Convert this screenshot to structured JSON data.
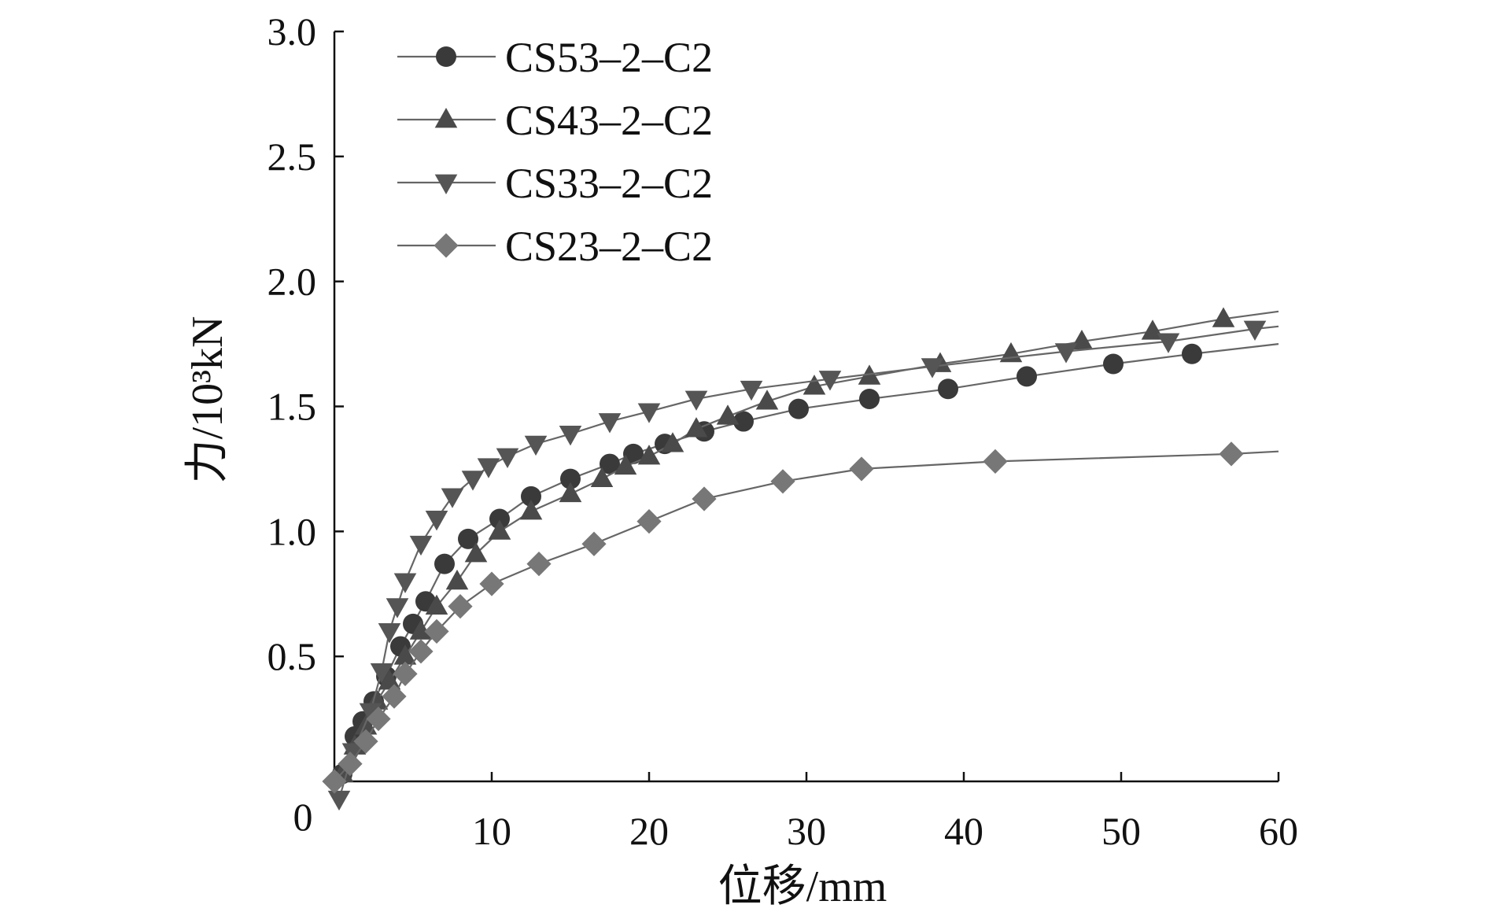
{
  "chart_data": {
    "type": "line",
    "title": "",
    "xlabel": "位移/mm",
    "ylabel": "力/10³kN",
    "xlim": [
      0,
      60
    ],
    "ylim": [
      0,
      3.0
    ],
    "xticks": [
      0,
      10,
      20,
      30,
      40,
      50,
      60
    ],
    "yticks": [
      0.5,
      1.0,
      1.5,
      2.0,
      2.5,
      3.0
    ],
    "xtick_labels": [
      "10",
      "20",
      "30",
      "40",
      "50",
      "60"
    ],
    "ytick_labels": [
      "0.5",
      "1.0",
      "1.5",
      "2.0",
      "2.5",
      "3.0"
    ],
    "origin_label": "0",
    "grid": false,
    "legend_position": "top-left",
    "series": [
      {
        "name": "CS53–2–C2",
        "marker": "circle",
        "color": "#3a3a3a",
        "x": [
          0,
          0.5,
          1.3,
          1.8,
          2.5,
          3.3,
          4.2,
          5.0,
          5.8,
          7.0,
          8.5,
          10.5,
          12.5,
          15.0,
          17.5,
          19.0,
          21.0,
          23.5,
          26.0,
          29.5,
          34.0,
          39.0,
          44.0,
          49.5,
          54.5,
          60.0
        ],
        "y": [
          0,
          0.03,
          0.18,
          0.24,
          0.32,
          0.42,
          0.54,
          0.63,
          0.72,
          0.87,
          0.97,
          1.05,
          1.14,
          1.21,
          1.27,
          1.31,
          1.35,
          1.4,
          1.44,
          1.49,
          1.53,
          1.57,
          1.62,
          1.67,
          1.71,
          1.75
        ],
        "markers_x": [
          0.5,
          1.3,
          1.8,
          2.5,
          3.3,
          4.2,
          5.0,
          5.8,
          7.0,
          8.5,
          10.5,
          12.5,
          15.0,
          17.5,
          19.0,
          21.0,
          23.5,
          26.0,
          29.5,
          34.0,
          39.0,
          44.0,
          49.5,
          54.5
        ]
      },
      {
        "name": "CS43–2–C2",
        "marker": "triangle-up",
        "color": "#4a4a4a",
        "x": [
          0,
          0.5,
          1.3,
          2.0,
          2.7,
          3.5,
          4.5,
          5.5,
          6.5,
          7.8,
          9.0,
          10.5,
          12.5,
          15.0,
          17.0,
          18.5,
          20.0,
          21.5,
          23.0,
          25.0,
          27.5,
          30.5,
          34.0,
          38.5,
          43.0,
          47.5,
          52.0,
          56.5,
          60.0
        ],
        "y": [
          0,
          0.03,
          0.14,
          0.22,
          0.32,
          0.4,
          0.5,
          0.6,
          0.7,
          0.8,
          0.91,
          1.0,
          1.08,
          1.15,
          1.21,
          1.26,
          1.3,
          1.35,
          1.41,
          1.46,
          1.52,
          1.58,
          1.62,
          1.67,
          1.71,
          1.76,
          1.8,
          1.85,
          1.88
        ],
        "markers_x": [
          0.5,
          1.3,
          2.0,
          2.7,
          3.5,
          4.5,
          5.5,
          6.5,
          7.8,
          9.0,
          10.5,
          12.5,
          15.0,
          17.0,
          18.5,
          20.0,
          21.5,
          23.0,
          25.0,
          27.5,
          30.5,
          34.0,
          38.5,
          43.0,
          47.5,
          52.0,
          56.5
        ]
      },
      {
        "name": "CS33–2–C2",
        "marker": "triangle-down",
        "color": "#555555",
        "x": [
          0,
          0.3,
          1.2,
          2.3,
          3.0,
          3.5,
          4.0,
          4.5,
          5.5,
          6.5,
          7.5,
          8.8,
          9.8,
          11.0,
          12.8,
          15.0,
          17.5,
          20.0,
          23.0,
          26.5,
          31.5,
          38.0,
          46.5,
          53.0,
          58.5,
          60.0
        ],
        "y": [
          0,
          -0.07,
          0.12,
          0.28,
          0.44,
          0.6,
          0.7,
          0.8,
          0.95,
          1.05,
          1.14,
          1.21,
          1.26,
          1.3,
          1.35,
          1.39,
          1.44,
          1.48,
          1.53,
          1.57,
          1.61,
          1.66,
          1.72,
          1.76,
          1.81,
          1.82
        ],
        "markers_x": [
          0.3,
          1.2,
          2.3,
          3.0,
          3.5,
          4.0,
          4.5,
          5.5,
          6.5,
          7.5,
          8.8,
          9.8,
          11.0,
          12.8,
          15.0,
          17.5,
          20.0,
          23.0,
          26.5,
          31.5,
          38.0,
          46.5,
          53.0,
          58.5
        ]
      },
      {
        "name": "CS23–2–C2",
        "marker": "diamond",
        "color": "#777777",
        "x": [
          0,
          1.0,
          2.0,
          2.8,
          3.8,
          4.5,
          5.5,
          6.5,
          8.0,
          10.0,
          13.0,
          16.5,
          20.0,
          23.5,
          28.5,
          33.5,
          42.0,
          57.0,
          60.0
        ],
        "y": [
          0,
          0.07,
          0.16,
          0.25,
          0.34,
          0.43,
          0.52,
          0.6,
          0.7,
          0.79,
          0.87,
          0.95,
          1.04,
          1.13,
          1.2,
          1.25,
          1.28,
          1.31,
          1.32
        ],
        "markers_x": [
          0,
          1.0,
          2.0,
          2.8,
          3.8,
          4.5,
          5.5,
          6.5,
          8.0,
          10.0,
          13.0,
          16.5,
          20.0,
          23.5,
          28.5,
          33.5,
          42.0,
          57.0
        ]
      }
    ]
  }
}
